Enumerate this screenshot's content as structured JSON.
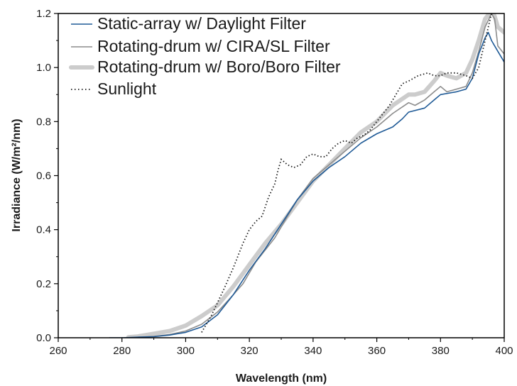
{
  "chart_data": {
    "type": "line",
    "title": "",
    "xlabel": "Wavelength (nm)",
    "ylabel": "Irradiance (W/m²/nm)",
    "xlim": [
      260,
      400
    ],
    "ylim": [
      0,
      1.2
    ],
    "x_ticks": [
      "260",
      "280",
      "300",
      "320",
      "340",
      "360",
      "380",
      "400"
    ],
    "y_ticks": [
      "0.0",
      "0.2",
      "0.4",
      "0.6",
      "0.8",
      "1.0",
      "1.2"
    ],
    "grid": false,
    "legend_position": "top-left",
    "series": [
      {
        "name": "Static-array w/ Daylight Filter",
        "color": "#1f5a96",
        "style": "solid-thin",
        "points": [
          [
            276,
            0
          ],
          [
            280,
            0
          ],
          [
            285,
            0.002
          ],
          [
            290,
            0.004
          ],
          [
            295,
            0.01
          ],
          [
            300,
            0.02
          ],
          [
            305,
            0.04
          ],
          [
            310,
            0.085
          ],
          [
            315,
            0.16
          ],
          [
            320,
            0.25
          ],
          [
            325,
            0.33
          ],
          [
            330,
            0.42
          ],
          [
            335,
            0.51
          ],
          [
            340,
            0.58
          ],
          [
            345,
            0.63
          ],
          [
            350,
            0.67
          ],
          [
            355,
            0.72
          ],
          [
            360,
            0.755
          ],
          [
            365,
            0.78
          ],
          [
            368,
            0.81
          ],
          [
            370,
            0.835
          ],
          [
            375,
            0.85
          ],
          [
            378,
            0.88
          ],
          [
            380,
            0.9
          ],
          [
            385,
            0.91
          ],
          [
            388,
            0.92
          ],
          [
            390,
            0.96
          ],
          [
            392,
            1.05
          ],
          [
            394,
            1.11
          ],
          [
            395,
            1.13
          ],
          [
            396,
            1.1
          ],
          [
            398,
            1.06
          ],
          [
            400,
            1.02
          ]
        ]
      },
      {
        "name": "Rotating-drum w/ CIRA/SL Filter",
        "color": "#8c8c8c",
        "style": "solid-thin",
        "points": [
          [
            285,
            0.002
          ],
          [
            290,
            0.005
          ],
          [
            295,
            0.012
          ],
          [
            300,
            0.025
          ],
          [
            305,
            0.05
          ],
          [
            310,
            0.095
          ],
          [
            315,
            0.16
          ],
          [
            318,
            0.2
          ],
          [
            320,
            0.24
          ],
          [
            322,
            0.28
          ],
          [
            324,
            0.31
          ],
          [
            326,
            0.34
          ],
          [
            328,
            0.37
          ],
          [
            330,
            0.41
          ],
          [
            335,
            0.51
          ],
          [
            340,
            0.59
          ],
          [
            345,
            0.64
          ],
          [
            350,
            0.69
          ],
          [
            355,
            0.74
          ],
          [
            360,
            0.78
          ],
          [
            365,
            0.83
          ],
          [
            370,
            0.87
          ],
          [
            372,
            0.86
          ],
          [
            375,
            0.88
          ],
          [
            378,
            0.91
          ],
          [
            380,
            0.93
          ],
          [
            382,
            0.91
          ],
          [
            385,
            0.92
          ],
          [
            388,
            0.93
          ],
          [
            390,
            0.98
          ],
          [
            392,
            1.06
          ],
          [
            394,
            1.15
          ],
          [
            396,
            1.2
          ],
          [
            397,
            1.18
          ],
          [
            398,
            1.08
          ],
          [
            400,
            1.05
          ]
        ]
      },
      {
        "name": "Rotating-drum w/ Boro/Boro Filter",
        "color": "#cccccc",
        "style": "solid-thick",
        "points": [
          [
            282,
            0.002
          ],
          [
            285,
            0.005
          ],
          [
            290,
            0.015
          ],
          [
            295,
            0.025
          ],
          [
            300,
            0.045
          ],
          [
            305,
            0.08
          ],
          [
            310,
            0.12
          ],
          [
            315,
            0.19
          ],
          [
            320,
            0.27
          ],
          [
            325,
            0.35
          ],
          [
            330,
            0.42
          ],
          [
            335,
            0.5
          ],
          [
            340,
            0.58
          ],
          [
            345,
            0.64
          ],
          [
            350,
            0.7
          ],
          [
            355,
            0.76
          ],
          [
            360,
            0.8
          ],
          [
            365,
            0.86
          ],
          [
            370,
            0.9
          ],
          [
            372,
            0.9
          ],
          [
            375,
            0.91
          ],
          [
            378,
            0.95
          ],
          [
            380,
            0.98
          ],
          [
            382,
            0.97
          ],
          [
            385,
            0.96
          ],
          [
            388,
            0.98
          ],
          [
            390,
            1.03
          ],
          [
            392,
            1.1
          ],
          [
            394,
            1.18
          ],
          [
            396,
            1.21
          ],
          [
            397,
            1.19
          ],
          [
            398,
            1.15
          ],
          [
            400,
            1.13
          ]
        ]
      },
      {
        "name": "Sunlight",
        "color": "#1a1a1a",
        "style": "dotted",
        "points": [
          [
            305,
            0.02
          ],
          [
            308,
            0.08
          ],
          [
            310,
            0.13
          ],
          [
            312,
            0.18
          ],
          [
            315,
            0.26
          ],
          [
            318,
            0.35
          ],
          [
            320,
            0.4
          ],
          [
            322,
            0.43
          ],
          [
            324,
            0.45
          ],
          [
            326,
            0.52
          ],
          [
            328,
            0.57
          ],
          [
            329,
            0.62
          ],
          [
            330,
            0.66
          ],
          [
            332,
            0.64
          ],
          [
            334,
            0.63
          ],
          [
            336,
            0.64
          ],
          [
            338,
            0.67
          ],
          [
            340,
            0.68
          ],
          [
            342,
            0.67
          ],
          [
            344,
            0.67
          ],
          [
            346,
            0.7
          ],
          [
            348,
            0.72
          ],
          [
            350,
            0.73
          ],
          [
            352,
            0.72
          ],
          [
            354,
            0.74
          ],
          [
            356,
            0.75
          ],
          [
            358,
            0.77
          ],
          [
            360,
            0.8
          ],
          [
            362,
            0.83
          ],
          [
            364,
            0.86
          ],
          [
            366,
            0.9
          ],
          [
            368,
            0.94
          ],
          [
            370,
            0.95
          ],
          [
            373,
            0.97
          ],
          [
            376,
            0.98
          ],
          [
            378,
            0.97
          ],
          [
            380,
            0.97
          ],
          [
            382,
            0.98
          ],
          [
            385,
            0.98
          ],
          [
            388,
            0.97
          ],
          [
            390,
            0.96
          ],
          [
            392,
            1.0
          ],
          [
            394,
            1.1
          ],
          [
            395,
            1.15
          ],
          [
            396,
            1.2
          ]
        ]
      }
    ]
  }
}
